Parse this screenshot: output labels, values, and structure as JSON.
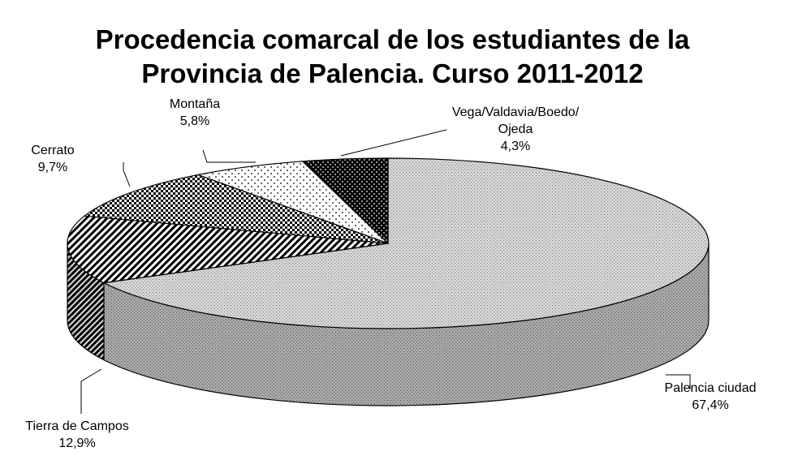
{
  "chart_data": {
    "type": "pie3d",
    "title": "Procedencia comarcal de los estudiantes de la Provincia de Palencia. Curso 2011-2012",
    "categories": [
      "Palencia ciudad",
      "Tierra de Campos",
      "Cerrato",
      "Montaña",
      "Vega/Valdavia/Boedo/Ojeda"
    ],
    "values": [
      67.4,
      12.9,
      9.7,
      5.8,
      4.3
    ],
    "value_labels": [
      "67,4%",
      "12,9%",
      "9,7%",
      "5,8%",
      "4,3%"
    ]
  }
}
